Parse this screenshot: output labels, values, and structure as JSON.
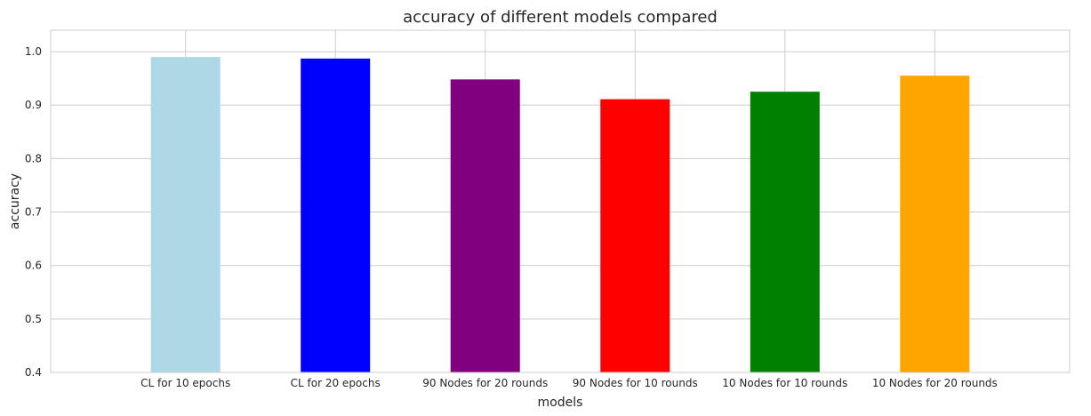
{
  "chart_data": {
    "type": "bar",
    "title": "accuracy of different models compared",
    "xlabel": "models",
    "ylabel": "accuracy",
    "categories": [
      "CL for 10 epochs",
      "CL for 20 epochs",
      "90 Nodes for 20 rounds",
      "90 Nodes for 10 rounds",
      "10 Nodes for 10 rounds",
      "10 Nodes for 20 rounds"
    ],
    "values": [
      0.99,
      0.987,
      0.948,
      0.911,
      0.925,
      0.955
    ],
    "colors": [
      "#add8e6",
      "#0000ff",
      "#800080",
      "#ff0000",
      "#008000",
      "#ffa500"
    ],
    "ylim": [
      0.4,
      1.04
    ],
    "yticks": [
      0.4,
      0.5,
      0.6,
      0.7,
      0.8,
      0.9,
      1.0
    ],
    "ytick_labels": [
      "0.4",
      "0.5",
      "0.6",
      "0.7",
      "0.8",
      "0.9",
      "1.0"
    ],
    "grid": true,
    "grid_color": "#cccccc",
    "background": "#ffffff"
  }
}
